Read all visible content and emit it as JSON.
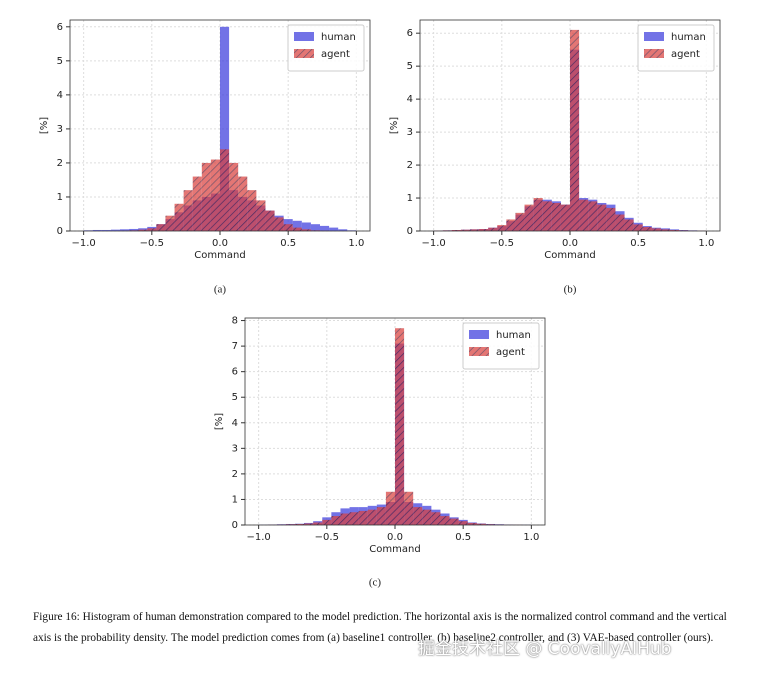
{
  "chart_data": [
    {
      "type": "histogram",
      "caption": "(a)",
      "xlabel": "Command",
      "ylabel": "[%]",
      "bins": [
        -1,
        -0.9333,
        -0.8667,
        -0.8,
        -0.7333,
        -0.6667,
        -0.6,
        -0.5333,
        -0.4667,
        -0.4,
        -0.3333,
        -0.2667,
        -0.2,
        -0.1333,
        -0.0667,
        0,
        0.0667,
        0.1333,
        0.2,
        0.2667,
        0.3333,
        0.4,
        0.4667,
        0.5333,
        0.6,
        0.6667,
        0.7333,
        0.8,
        0.8667,
        0.9333,
        1
      ],
      "series": [
        {
          "name": "human",
          "color": "#3b3bdc",
          "hatch": false,
          "values": [
            0.02,
            0.03,
            0.03,
            0.04,
            0.05,
            0.06,
            0.08,
            0.12,
            0.2,
            0.35,
            0.55,
            0.75,
            0.9,
            1.0,
            1.1,
            6.0,
            1.2,
            1.0,
            0.9,
            0.75,
            0.6,
            0.45,
            0.35,
            0.3,
            0.25,
            0.2,
            0.15,
            0.1,
            0.05,
            0.02
          ]
        },
        {
          "name": "agent",
          "color": "#d9413f",
          "hatch": true,
          "values": [
            0,
            0,
            0,
            0,
            0.01,
            0.02,
            0.04,
            0.08,
            0.2,
            0.45,
            0.8,
            1.2,
            1.6,
            2.0,
            2.1,
            2.4,
            2.0,
            1.6,
            1.2,
            0.9,
            0.6,
            0.4,
            0.2,
            0.1,
            0.05,
            0.02,
            0.01,
            0,
            0,
            0
          ]
        }
      ],
      "xlim": [
        -1.1,
        1.1
      ],
      "ylim": [
        0,
        6.2
      ],
      "xticks": [
        {
          "value": -1,
          "label": "−1.0"
        },
        {
          "value": -0.5,
          "label": "−0.5"
        },
        {
          "value": 0,
          "label": "0.0"
        },
        {
          "value": 0.5,
          "label": "0.5"
        },
        {
          "value": 1,
          "label": "1.0"
        }
      ],
      "yticks": [
        0,
        1,
        2,
        3,
        4,
        5,
        6
      ],
      "grid": true,
      "legend": "upper right"
    },
    {
      "type": "histogram",
      "caption": "(b)",
      "xlabel": "Command",
      "ylabel": "[%]",
      "bins": [
        -1,
        -0.9333,
        -0.8667,
        -0.8,
        -0.7333,
        -0.6667,
        -0.6,
        -0.5333,
        -0.4667,
        -0.4,
        -0.3333,
        -0.2667,
        -0.2,
        -0.1333,
        -0.0667,
        0,
        0.0667,
        0.1333,
        0.2,
        0.2667,
        0.3333,
        0.4,
        0.4667,
        0.5333,
        0.6,
        0.6667,
        0.7333,
        0.8,
        0.8667,
        0.9333,
        1
      ],
      "series": [
        {
          "name": "human",
          "color": "#3b3bdc",
          "hatch": false,
          "values": [
            0.01,
            0.02,
            0.03,
            0.04,
            0.05,
            0.06,
            0.1,
            0.15,
            0.3,
            0.5,
            0.75,
            0.95,
            0.95,
            0.9,
            0.8,
            5.5,
            1.0,
            0.95,
            0.85,
            0.8,
            0.6,
            0.4,
            0.25,
            0.15,
            0.1,
            0.08,
            0.05,
            0.03,
            0.02,
            0.01
          ]
        },
        {
          "name": "agent",
          "color": "#d9413f",
          "hatch": true,
          "values": [
            0.01,
            0.02,
            0.03,
            0.04,
            0.05,
            0.06,
            0.1,
            0.18,
            0.35,
            0.55,
            0.8,
            1.0,
            0.9,
            0.85,
            0.8,
            6.1,
            0.95,
            0.9,
            0.8,
            0.7,
            0.5,
            0.35,
            0.2,
            0.12,
            0.08,
            0.05,
            0.03,
            0.02,
            0.01,
            0.01
          ]
        }
      ],
      "xlim": [
        -1.1,
        1.1
      ],
      "ylim": [
        0,
        6.4
      ],
      "xticks": [
        {
          "value": -1,
          "label": "−1.0"
        },
        {
          "value": -0.5,
          "label": "−0.5"
        },
        {
          "value": 0,
          "label": "0.0"
        },
        {
          "value": 0.5,
          "label": "0.5"
        },
        {
          "value": 1,
          "label": "1.0"
        }
      ],
      "yticks": [
        0,
        1,
        2,
        3,
        4,
        5,
        6
      ],
      "grid": true,
      "legend": "upper right"
    },
    {
      "type": "histogram",
      "caption": "(c)",
      "xlabel": "Command",
      "ylabel": "[%]",
      "bins": [
        -1,
        -0.9333,
        -0.8667,
        -0.8,
        -0.7333,
        -0.6667,
        -0.6,
        -0.5333,
        -0.4667,
        -0.4,
        -0.3333,
        -0.2667,
        -0.2,
        -0.1333,
        -0.0667,
        0,
        0.0667,
        0.1333,
        0.2,
        0.2667,
        0.3333,
        0.4,
        0.4667,
        0.5333,
        0.6,
        0.6667,
        0.7333,
        0.8,
        0.8667,
        0.9333,
        1
      ],
      "series": [
        {
          "name": "human",
          "color": "#3b3bdc",
          "hatch": false,
          "values": [
            0.01,
            0.02,
            0.03,
            0.04,
            0.05,
            0.08,
            0.15,
            0.3,
            0.5,
            0.65,
            0.7,
            0.7,
            0.75,
            0.8,
            0.9,
            7.1,
            0.9,
            0.85,
            0.75,
            0.6,
            0.45,
            0.3,
            0.2,
            0.1,
            0.06,
            0.04,
            0.03,
            0.02,
            0.01,
            0.01
          ]
        },
        {
          "name": "agent",
          "color": "#d9413f",
          "hatch": true,
          "values": [
            0,
            0.01,
            0.02,
            0.03,
            0.04,
            0.06,
            0.1,
            0.2,
            0.35,
            0.45,
            0.5,
            0.55,
            0.6,
            0.7,
            1.3,
            7.7,
            1.3,
            0.7,
            0.6,
            0.5,
            0.35,
            0.25,
            0.15,
            0.08,
            0.05,
            0.03,
            0.02,
            0.01,
            0.01,
            0
          ]
        }
      ],
      "xlim": [
        -1.1,
        1.1
      ],
      "ylim": [
        0,
        8.1
      ],
      "xticks": [
        {
          "value": -1,
          "label": "−1.0"
        },
        {
          "value": -0.5,
          "label": "−0.5"
        },
        {
          "value": 0,
          "label": "0.0"
        },
        {
          "value": 0.5,
          "label": "0.5"
        },
        {
          "value": 1,
          "label": "1.0"
        }
      ],
      "yticks": [
        0,
        1,
        2,
        3,
        4,
        5,
        6,
        7,
        8
      ],
      "grid": true,
      "legend": "upper right"
    }
  ],
  "caption": "Figure 16: Histogram of human demonstration compared to the model prediction. The horizontal axis is the normalized control command and the vertical axis is the probability density. The model prediction comes from (a) baseline1 controller, (b) baseline2 controller, and (3) VAE-based controller (ours).",
  "watermark": "掘金技术社区 @ CoovallyAIHub"
}
